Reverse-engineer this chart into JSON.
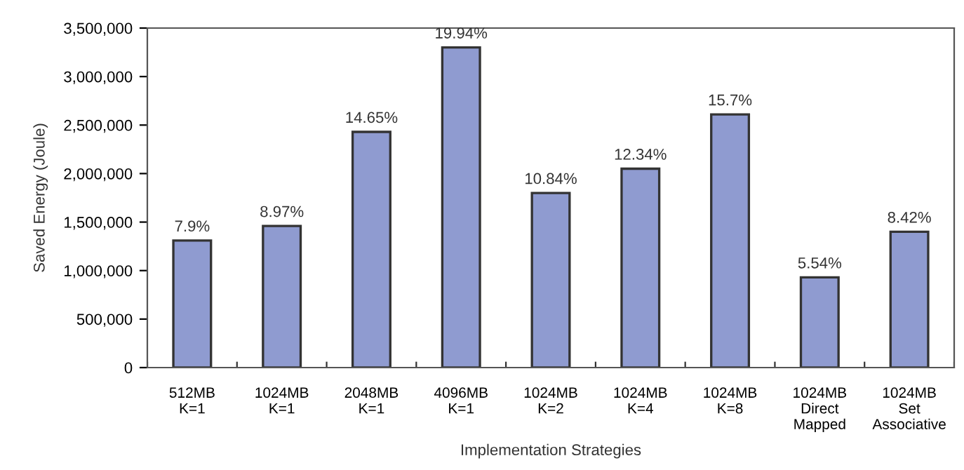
{
  "chart_data": {
    "type": "bar",
    "xlabel": "Implementation Strategies",
    "ylabel": "Saved Energy (Joule)",
    "categories": [
      "512MB\nK=1",
      "1024MB\nK=1",
      "2048MB\nK=1",
      "4096MB\nK=1",
      "1024MB\nK=2",
      "1024MB\nK=4",
      "1024MB\nK=8",
      "1024MB\nDirect\nMapped",
      "1024MB\nSet\nAssociative"
    ],
    "values": [
      1310000,
      1460000,
      2430000,
      3300000,
      1800000,
      2050000,
      2610000,
      930000,
      1400000
    ],
    "annotations": [
      {
        "text": "7.9%",
        "x": "512MB\nK=1",
        "y": 1310000
      },
      {
        "text": "8.97%",
        "x": "1024MB\nK=1",
        "y": 1460000
      },
      {
        "text": "14.65%",
        "x": "2048MB\nK=1",
        "y": 2430000
      },
      {
        "text": "19.94%",
        "x": "4096MB\nK=1",
        "y": 3300000
      },
      {
        "text": "10.84%",
        "x": "1024MB\nK=2",
        "y": 1800000
      },
      {
        "text": "12.34%",
        "x": "1024MB\nK=4",
        "y": 2050000
      },
      {
        "text": "15.7%",
        "x": "1024MB\nK=8",
        "y": 2610000
      },
      {
        "text": "5.54%",
        "x": "1024MB\nDirect\nMapped",
        "y": 930000
      },
      {
        "text": "8.42%",
        "x": "1024MB\nSet\nAssociative",
        "y": 1400000
      }
    ],
    "color": "#8f9bd0",
    "ylim": [
      0,
      3500000
    ],
    "yticks": [
      {
        "value": 0,
        "label": "0"
      },
      {
        "value": 500000,
        "label": "500,000"
      },
      {
        "value": 1000000,
        "label": "1,000,000"
      },
      {
        "value": 1500000,
        "label": "1,500,000"
      },
      {
        "value": 2000000,
        "label": "2,000,000"
      },
      {
        "value": 2500000,
        "label": "2,500,000"
      },
      {
        "value": 3000000,
        "label": "3,000,000"
      },
      {
        "value": 3500000,
        "label": "3,500,000"
      }
    ],
    "grid": false,
    "legend": false
  }
}
